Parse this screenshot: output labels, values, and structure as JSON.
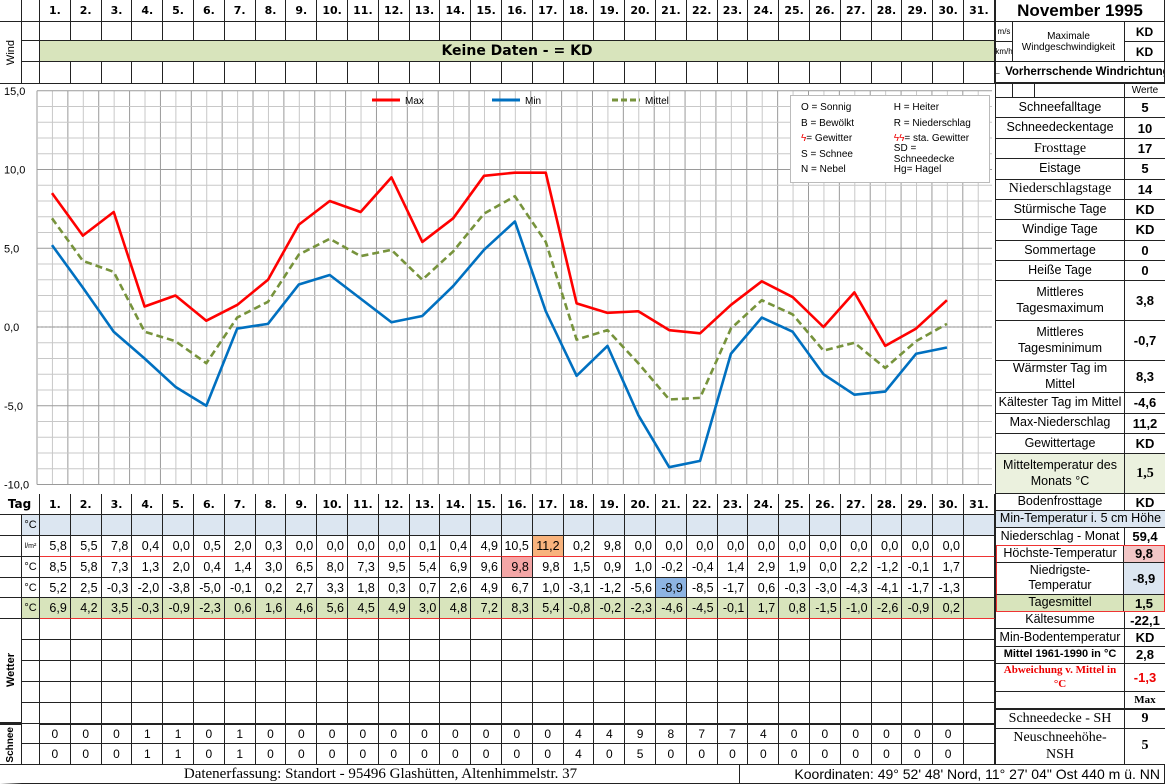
{
  "title": "November 1995",
  "days": [
    "1.",
    "2.",
    "3.",
    "4.",
    "5.",
    "6.",
    "7.",
    "8.",
    "9.",
    "10.",
    "11.",
    "12.",
    "13.",
    "14.",
    "15.",
    "16.",
    "17.",
    "18.",
    "19.",
    "20.",
    "21.",
    "22.",
    "23.",
    "24.",
    "25.",
    "26.",
    "27.",
    "28.",
    "29.",
    "30.",
    "31."
  ],
  "wind": {
    "side_label": "Wind",
    "banner": "Keine Daten -  = KD",
    "unit_ms": "m/s",
    "unit_kmh": "km/h",
    "max_label": "Maximale Windgeschwindigkeit",
    "max_ms": "KD",
    "max_kmh": "KD",
    "direction_label": "← Vorherrschende Windrichtung"
  },
  "chart_data": {
    "type": "line",
    "x": [
      1,
      2,
      3,
      4,
      5,
      6,
      7,
      8,
      9,
      10,
      11,
      12,
      13,
      14,
      15,
      16,
      17,
      18,
      19,
      20,
      21,
      22,
      23,
      24,
      25,
      26,
      27,
      28,
      29,
      30
    ],
    "ylim": [
      -10,
      15
    ],
    "yticks": [
      "15,0",
      "10,0",
      "5,0",
      "0,0",
      "-5,0",
      "-10,0"
    ],
    "ytick_values": [
      15,
      10,
      5,
      0,
      -5,
      -10
    ],
    "legend": "top-center",
    "series": [
      {
        "name": "Max",
        "color": "#ff0000",
        "style": "solid",
        "values": [
          8.5,
          5.8,
          7.3,
          1.3,
          2.0,
          0.4,
          1.4,
          3.0,
          6.5,
          8.0,
          7.3,
          9.5,
          5.4,
          6.9,
          9.6,
          9.8,
          9.8,
          1.5,
          0.9,
          1.0,
          -0.2,
          -0.4,
          1.4,
          2.9,
          1.9,
          0.0,
          2.2,
          -1.2,
          -0.1,
          1.7
        ]
      },
      {
        "name": "Min",
        "color": "#0070c0",
        "style": "solid",
        "values": [
          5.2,
          2.5,
          -0.3,
          -2.0,
          -3.8,
          -5.0,
          -0.1,
          0.2,
          2.7,
          3.3,
          1.8,
          0.3,
          0.7,
          2.6,
          4.9,
          6.7,
          1.0,
          -3.1,
          -1.2,
          -5.6,
          -8.9,
          -8.5,
          -1.7,
          0.6,
          -0.3,
          -3.0,
          -4.3,
          -4.1,
          -1.7,
          -1.3
        ]
      },
      {
        "name": "Mittel",
        "color": "#77933c",
        "style": "dashed",
        "values": [
          6.9,
          4.2,
          3.5,
          -0.3,
          -0.9,
          -2.3,
          0.6,
          1.6,
          4.6,
          5.6,
          4.5,
          4.9,
          3.0,
          4.8,
          7.2,
          8.3,
          5.4,
          -0.8,
          -0.2,
          -2.3,
          -4.6,
          -4.5,
          -0.1,
          1.7,
          0.8,
          -1.5,
          -1.0,
          -2.6,
          -0.9,
          0.2
        ]
      }
    ]
  },
  "symbol_legend": [
    [
      "O = Sonnig",
      "H = Heiter"
    ],
    [
      "B = Bewölkt",
      "R = Niederschlag"
    ],
    [
      "= Gewitter",
      "= sta. Gewitter"
    ],
    [
      "S = Schnee",
      "SD = Schneedecke"
    ],
    [
      "N = Nebel",
      "Hg= Hagel"
    ]
  ],
  "stats_header": "Werte",
  "stats": [
    {
      "label": "Schneefalltage",
      "value": "5"
    },
    {
      "label": "Schneedeckentage",
      "value": "10"
    },
    {
      "label": "Frosttage",
      "value": "17",
      "serif": true
    },
    {
      "label": "Eistage",
      "value": "5"
    },
    {
      "label": "Niederschlagstage",
      "value": "14",
      "serif": true
    },
    {
      "label": "Stürmische Tage",
      "value": "KD"
    },
    {
      "label": "Windige Tage",
      "value": "KD"
    },
    {
      "label": "Sommertage",
      "value": "0"
    },
    {
      "label": "Heiße Tage",
      "value": "0"
    },
    {
      "label": "Mittleres Tagesmaximum",
      "value": "3,8",
      "tall": true
    },
    {
      "label": "Mittleres Tagesminimum",
      "value": "-0,7",
      "tall": true
    },
    {
      "label": "Wärmster Tag im Mittel",
      "value": "8,3"
    },
    {
      "label": "Kältester Tag im Mittel",
      "value": "-4,6"
    },
    {
      "label": "Max-Niederschlag",
      "value": "11,2"
    },
    {
      "label": "Gewittertage",
      "value": "KD"
    },
    {
      "label": "Mitteltemperatur des Monats °C",
      "value": "1,5",
      "tall": true,
      "green": true
    }
  ],
  "table": {
    "tag_label": "Tag",
    "rows": [
      {
        "unit": "°C",
        "cls": "blue",
        "values": []
      },
      {
        "unit": "l/m²",
        "values": [
          "5,8",
          "5,5",
          "7,8",
          "0,4",
          "0,0",
          "0,5",
          "2,0",
          "0,3",
          "0,0",
          "0,0",
          "0,0",
          "0,0",
          "0,1",
          "0,4",
          "4,9",
          "10,5",
          "11,2",
          "0,2",
          "9,8",
          "0,0",
          "0,0",
          "0,0",
          "0,0",
          "0,0",
          "0,0",
          "0,0",
          "0,0",
          "0,0",
          "0,0",
          "0,0"
        ],
        "hl": {
          "16": "#f8b37d"
        },
        "red": true
      },
      {
        "unit": "°C",
        "values": [
          "8,5",
          "5,8",
          "7,3",
          "1,3",
          "2,0",
          "0,4",
          "1,4",
          "3,0",
          "6,5",
          "8,0",
          "7,3",
          "9,5",
          "5,4",
          "6,9",
          "9,6",
          "9,8",
          "9,8",
          "1,5",
          "0,9",
          "1,0",
          "-0,2",
          "-0,4",
          "1,4",
          "2,9",
          "1,9",
          "0,0",
          "2,2",
          "-1,2",
          "-0,1",
          "1,7"
        ],
        "hl": {
          "15": "#f4a6a6"
        }
      },
      {
        "unit": "°C",
        "values": [
          "5,2",
          "2,5",
          "-0,3",
          "-2,0",
          "-3,8",
          "-5,0",
          "-0,1",
          "0,2",
          "2,7",
          "3,3",
          "1,8",
          "0,3",
          "0,7",
          "2,6",
          "4,9",
          "6,7",
          "1,0",
          "-3,1",
          "-1,2",
          "-5,6",
          "-8,9",
          "-8,5",
          "-1,7",
          "0,6",
          "-0,3",
          "-3,0",
          "-4,3",
          "-4,1",
          "-1,7",
          "-1,3"
        ],
        "hl": {
          "20": "#8db4e2"
        }
      },
      {
        "unit": "°C",
        "cls": "green",
        "values": [
          "6,9",
          "4,2",
          "3,5",
          "-0,3",
          "-0,9",
          "-2,3",
          "0,6",
          "1,6",
          "4,6",
          "5,6",
          "4,5",
          "4,9",
          "3,0",
          "4,8",
          "7,2",
          "8,3",
          "5,4",
          "-0,8",
          "-0,2",
          "-2,3",
          "-4,6",
          "-4,5",
          "-0,1",
          "1,7",
          "0,8",
          "-1,5",
          "-1,0",
          "-2,6",
          "-0,9",
          "0,2"
        ],
        "red": true
      }
    ],
    "weather_label": "Wetter",
    "snow_label": "Schnee",
    "snow_rows": [
      {
        "values": [
          "0",
          "0",
          "0",
          "1",
          "1",
          "0",
          "1",
          "0",
          "0",
          "0",
          "0",
          "0",
          "0",
          "0",
          "0",
          "0",
          "0",
          "4",
          "4",
          "9",
          "8",
          "7",
          "7",
          "4",
          "0",
          "0",
          "0",
          "0",
          "0",
          "0"
        ]
      },
      {
        "values": [
          "0",
          "0",
          "0",
          "1",
          "1",
          "0",
          "1",
          "0",
          "0",
          "0",
          "0",
          "0",
          "0",
          "0",
          "0",
          "0",
          "0",
          "4",
          "0",
          "5",
          "0",
          "0",
          "0",
          "0",
          "0",
          "0",
          "0",
          "0",
          "0",
          "0"
        ]
      }
    ]
  },
  "right_table": [
    {
      "label": "Bodenfrosttage",
      "value": "KD"
    },
    {
      "label": "Min-Temperatur i. 5 cm Höhe",
      "value": "",
      "span": true,
      "bg": "#dce6f1"
    },
    {
      "label": "Niederschlag - Monat",
      "value": "59,4"
    },
    {
      "label": "Höchste-Temperatur",
      "value": "9,8",
      "vbg": "#f2c6c6"
    },
    {
      "label": "Niedrigste-Temperatur",
      "value": "-8,9",
      "vbg": "#dce6f1"
    },
    {
      "label": "Tagesmittel",
      "value": "1,5",
      "bg": "#d8e4bc"
    },
    {
      "label": "Kältesumme",
      "value": "-22,1"
    },
    {
      "label": "Min-Bodentemperatur",
      "value": "KD"
    },
    {
      "label": "Mittel 1961-1990 in °C",
      "value": "2,8",
      "bold": true
    },
    {
      "label": "Abweichung v. Mittel in °C",
      "value": "-1,3",
      "red": true
    },
    {
      "label": "",
      "value": "Max",
      "small": true
    },
    {
      "label": "Schneedecke -   SH",
      "value": "9",
      "serif": true
    },
    {
      "label": "Neuschneehöhe- NSH",
      "value": "5",
      "serif": true
    }
  ],
  "footer": {
    "location": "Datenerfassung:  Standort -  95496  Glashütten, Altenhimmelstr. 37",
    "coords": "Koordinaten:  49° 52' 48' Nord,   11° 27' 04\" Ost   440 m ü. NN"
  }
}
